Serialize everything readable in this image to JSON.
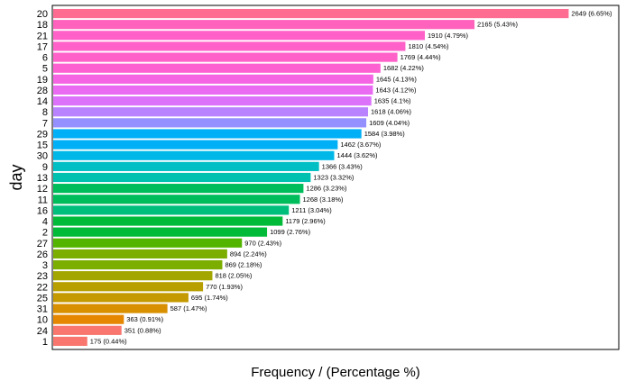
{
  "chart_data": {
    "type": "bar",
    "orientation": "horizontal",
    "xlabel": "Frequency / (Percentage %)",
    "ylabel": "day",
    "xlim": [
      0,
      2800
    ],
    "grid": false,
    "legend": "none",
    "categories": [
      "20",
      "18",
      "21",
      "17",
      "6",
      "5",
      "19",
      "28",
      "14",
      "8",
      "7",
      "29",
      "15",
      "30",
      "9",
      "13",
      "12",
      "11",
      "16",
      "4",
      "2",
      "27",
      "26",
      "3",
      "23",
      "22",
      "25",
      "31",
      "10",
      "24",
      "1"
    ],
    "values": [
      2649,
      2165,
      1910,
      1810,
      1769,
      1682,
      1645,
      1643,
      1635,
      1618,
      1609,
      1584,
      1462,
      1444,
      1366,
      1323,
      1286,
      1268,
      1211,
      1179,
      1099,
      970,
      894,
      869,
      818,
      770,
      695,
      587,
      363,
      351,
      175
    ],
    "labels": [
      "2649 (6.65%)",
      "2165 (5.43%)",
      "1910 (4.79%)",
      "1810 (4.54%)",
      "1769 (4.44%)",
      "1682 (4.22%)",
      "1645 (4.13%)",
      "1643 (4.12%)",
      "1635 (4.1%)",
      "1618 (4.06%)",
      "1609 (4.04%)",
      "1584 (3.98%)",
      "1462 (3.67%)",
      "1444 (3.62%)",
      "1366 (3.43%)",
      "1323 (3.32%)",
      "1286 (3.23%)",
      "1268 (3.18%)",
      "1211 (3.04%)",
      "1179 (2.96%)",
      "1099 (2.76%)",
      "970 (2.43%)",
      "894 (2.24%)",
      "869 (2.18%)",
      "818 (2.05%)",
      "770 (1.93%)",
      "695 (1.74%)",
      "587 (1.47%)",
      "363 (0.91%)",
      "351 (0.88%)",
      "175 (0.44%)"
    ],
    "colors": [
      "#FF6C91",
      "#FF62BC",
      "#FF61C9",
      "#FF61C9",
      "#FF61C9",
      "#FD61D1",
      "#F564E3",
      "#EA6AF1",
      "#DC71FA",
      "#B983FF",
      "#9590FF",
      "#00B0F6",
      "#00B0F6",
      "#00B8E7",
      "#00BFC4",
      "#00C0AF",
      "#00BD5C",
      "#00BD5C",
      "#00BF7D",
      "#00BA38",
      "#00BA38",
      "#53B400",
      "#7CAE00",
      "#7CAE00",
      "#A3A500",
      "#B79F00",
      "#C49A00",
      "#D89000",
      "#E58700",
      "#F8766D",
      "#F8766D"
    ]
  }
}
